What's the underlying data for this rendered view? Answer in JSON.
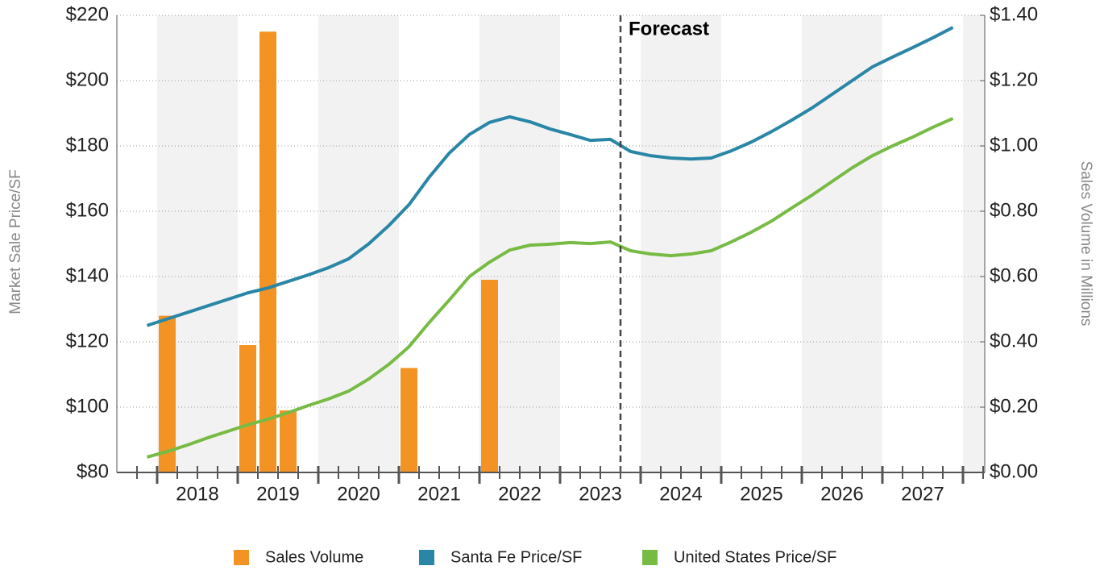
{
  "chart_data": {
    "type": "combo",
    "annotation": "Forecast",
    "y_label": "Market Sale Price/SF",
    "y2_label": "Sales Volume in Millions",
    "year_labels": [
      "2018",
      "2019",
      "2020",
      "2021",
      "2022",
      "2023",
      "2024",
      "2025",
      "2026",
      "2027"
    ],
    "ylim": [
      80,
      220
    ],
    "yticks": [
      {
        "value": 80,
        "label": "$80"
      },
      {
        "value": 100,
        "label": "$100"
      },
      {
        "value": 120,
        "label": "$120"
      },
      {
        "value": 140,
        "label": "$140"
      },
      {
        "value": 160,
        "label": "$160"
      },
      {
        "value": 180,
        "label": "$180"
      },
      {
        "value": 200,
        "label": "$200"
      },
      {
        "value": 220,
        "label": "$220"
      }
    ],
    "y2lim": [
      0,
      1.4
    ],
    "y2ticks": [
      {
        "value": 0,
        "label": "$0.00"
      },
      {
        "value": 0.2,
        "label": "$0.20"
      },
      {
        "value": 0.4,
        "label": "$0.40"
      },
      {
        "value": 0.6,
        "label": "$0.60"
      },
      {
        "value": 0.8,
        "label": "$0.80"
      },
      {
        "value": 1,
        "label": "$1.00"
      },
      {
        "value": 1.2,
        "label": "$1.20"
      },
      {
        "value": 1.4,
        "label": "$1.40"
      }
    ],
    "grid": true,
    "series": [
      {
        "name": "Sales Volume",
        "type": "bar",
        "axis": "y2",
        "color": "#f39323",
        "values": [
          0,
          0.48,
          0,
          0,
          0,
          0.39,
          1.35,
          0.19,
          0,
          0,
          0,
          0,
          0,
          0.32,
          0,
          0,
          0,
          0.59,
          0,
          0,
          0,
          0,
          0,
          null,
          null,
          null,
          null,
          null,
          null,
          null,
          null,
          null,
          null,
          null,
          null,
          null,
          null,
          null,
          null,
          null,
          null
        ]
      },
      {
        "name": "Santa Fe Price/SF",
        "type": "line",
        "color": "#2a86a6",
        "values": [
          125,
          127,
          129,
          131,
          133,
          135,
          136.5,
          138.5,
          140.5,
          142.7,
          145.4,
          150,
          155.6,
          162,
          170.4,
          177.8,
          183.5,
          187.2,
          188.9,
          187.4,
          185.2,
          183.5,
          181.7,
          182,
          178.3,
          177,
          176.3,
          176,
          176.3,
          178.5,
          181.2,
          184.4,
          187.9,
          191.6,
          195.8,
          200,
          204.2,
          207.2,
          210.1,
          213.1,
          216.3
        ]
      },
      {
        "name": "United States Price/SF",
        "type": "line",
        "color": "#77bb44",
        "values": [
          84.7,
          86.4,
          88.4,
          90.6,
          92.6,
          94.6,
          96.3,
          98.3,
          100.5,
          102.5,
          104.9,
          108.6,
          113.1,
          118.5,
          125.9,
          132.8,
          140,
          144.4,
          148.1,
          149.6,
          149.9,
          150.4,
          150.1,
          150.6,
          147.9,
          146.9,
          146.4,
          146.9,
          147.9,
          150.6,
          153.6,
          157,
          161,
          164.9,
          169.1,
          173.3,
          177,
          180,
          182.7,
          185.7,
          188.4
        ]
      }
    ]
  }
}
